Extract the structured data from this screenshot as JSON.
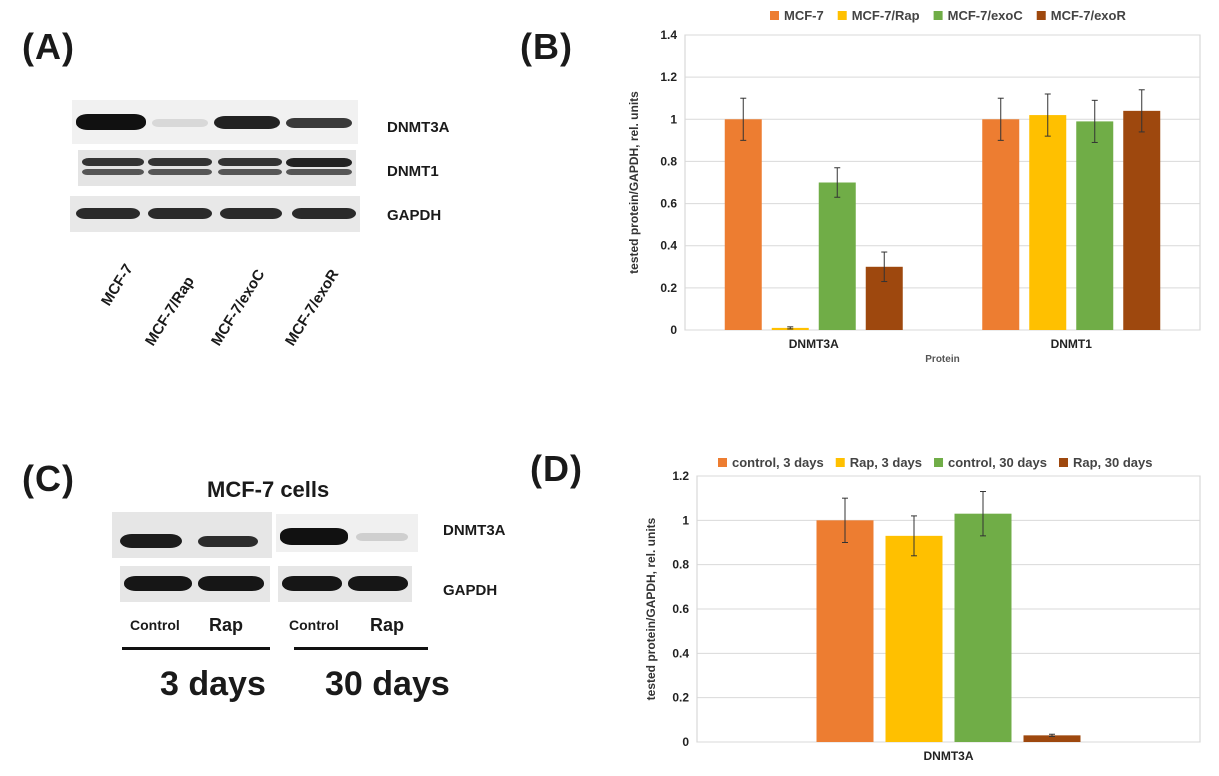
{
  "panels": {
    "a": "(A)",
    "b": "(B)",
    "c": "(C)",
    "d": "(D)"
  },
  "blot_a": {
    "rows": [
      "DNMT3A",
      "DNMT1",
      "GAPDH"
    ],
    "lanes": [
      "MCF-7",
      "MCF-7/Rap",
      "MCF-7/exoC",
      "MCF-7/exoR"
    ]
  },
  "blot_c": {
    "title": "MCF-7 cells",
    "rows": [
      "DNMT3A",
      "GAPDH"
    ],
    "lanes": [
      "Control",
      "Rap",
      "Control",
      "Rap"
    ],
    "groups": [
      "3 days",
      "30 days"
    ]
  },
  "chart_data": [
    {
      "id": "B",
      "type": "bar",
      "categories": [
        "DNMT3A",
        "DNMT1"
      ],
      "series": [
        {
          "name": "MCF-7",
          "color": "#ED7D31",
          "values": [
            1.0,
            1.0
          ],
          "errors": [
            0.1,
            0.1
          ]
        },
        {
          "name": "MCF-7/Rap",
          "color": "#FFC000",
          "values": [
            0.01,
            1.02
          ],
          "errors": [
            0.005,
            0.1
          ]
        },
        {
          "name": "MCF-7/exoC",
          "color": "#70AD47",
          "values": [
            0.7,
            0.99
          ],
          "errors": [
            0.07,
            0.1
          ]
        },
        {
          "name": "MCF-7/exoR",
          "color": "#9E480E",
          "values": [
            0.3,
            1.04
          ],
          "errors": [
            0.07,
            0.1
          ]
        }
      ],
      "ylabel": "tested protein/GAPDH,  rel. units",
      "xlabel": "Protein",
      "ylim": [
        0,
        1.4
      ],
      "yticks": [
        "0",
        "0.2",
        "0.4",
        "0.6",
        "0.8",
        "1",
        "1.2",
        "1.4"
      ],
      "legend": "top"
    },
    {
      "id": "D",
      "type": "bar",
      "categories": [
        "DNMT3A"
      ],
      "series": [
        {
          "name": "control, 3 days",
          "color": "#ED7D31",
          "values": [
            1.0
          ],
          "errors": [
            0.1
          ]
        },
        {
          "name": "Rap, 3 days",
          "color": "#FFC000",
          "values": [
            0.93
          ],
          "errors": [
            0.09
          ]
        },
        {
          "name": "control, 30 days",
          "color": "#70AD47",
          "values": [
            1.03
          ],
          "errors": [
            0.1
          ]
        },
        {
          "name": "Rap, 30 days",
          "color": "#9E480E",
          "values": [
            0.03
          ],
          "errors": [
            0.005
          ]
        }
      ],
      "ylabel": "tested protein/GAPDH,  rel. units",
      "xlabel": "",
      "ylim": [
        0,
        1.2
      ],
      "yticks": [
        "0",
        "0.2",
        "0.4",
        "0.6",
        "0.8",
        "1",
        "1.2"
      ],
      "legend": "top"
    }
  ]
}
